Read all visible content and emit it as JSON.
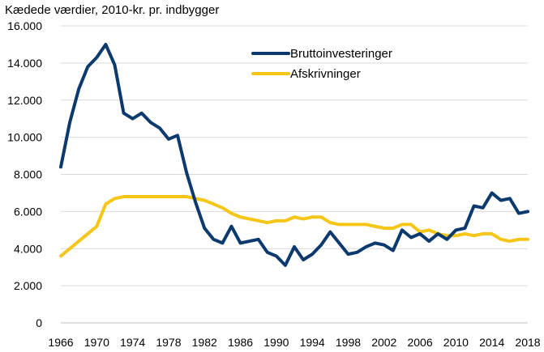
{
  "chart_data": {
    "type": "line",
    "title": "Kædede værdier, 2010-kr. pr. indbygger",
    "xlabel": "",
    "ylabel": "",
    "xlim": [
      1966,
      2018
    ],
    "ylim": [
      0,
      16000
    ],
    "x_ticks": [
      "1966",
      "1970",
      "1974",
      "1978",
      "1982",
      "1986",
      "1990",
      "1994",
      "1998",
      "2002",
      "2006",
      "2010",
      "2014",
      "2018"
    ],
    "y_ticks": [
      "0",
      "2.000",
      "4.000",
      "6.000",
      "8.000",
      "10.000",
      "12.000",
      "14.000",
      "16.000"
    ],
    "y_tick_values": [
      0,
      2000,
      4000,
      6000,
      8000,
      10000,
      12000,
      14000,
      16000
    ],
    "grid": "horizontal",
    "legend_position": "top-right",
    "x": [
      1966,
      1967,
      1968,
      1969,
      1970,
      1971,
      1972,
      1973,
      1974,
      1975,
      1976,
      1977,
      1978,
      1979,
      1980,
      1981,
      1982,
      1983,
      1984,
      1985,
      1986,
      1987,
      1988,
      1989,
      1990,
      1991,
      1992,
      1993,
      1994,
      1995,
      1996,
      1997,
      1998,
      1999,
      2000,
      2001,
      2002,
      2003,
      2004,
      2005,
      2006,
      2007,
      2008,
      2009,
      2010,
      2011,
      2012,
      2013,
      2014,
      2015,
      2016,
      2017,
      2018
    ],
    "series": [
      {
        "name": "Bruttoinvesteringer",
        "color": "#0d3a6e",
        "values": [
          8400,
          10800,
          12600,
          13800,
          14300,
          15000,
          13900,
          11300,
          11000,
          11300,
          10800,
          10500,
          9900,
          10100,
          8100,
          6500,
          5100,
          4500,
          4300,
          5200,
          4300,
          4400,
          4500,
          3800,
          3600,
          3100,
          4100,
          3400,
          3700,
          4200,
          4900,
          4300,
          3700,
          3800,
          4100,
          4300,
          4200,
          3900,
          5000,
          4600,
          4800,
          4400,
          4800,
          4500,
          5000,
          5100,
          6300,
          6200,
          7000,
          6600,
          6700,
          5900,
          6000
        ]
      },
      {
        "name": "Afskrivninger",
        "color": "#f5c518",
        "values": [
          3600,
          4000,
          4400,
          4800,
          5200,
          6400,
          6700,
          6800,
          6800,
          6800,
          6800,
          6800,
          6800,
          6800,
          6800,
          6700,
          6600,
          6400,
          6200,
          5900,
          5700,
          5600,
          5500,
          5400,
          5500,
          5500,
          5700,
          5600,
          5700,
          5700,
          5400,
          5300,
          5300,
          5300,
          5300,
          5200,
          5100,
          5100,
          5300,
          5300,
          4900,
          5000,
          4800,
          4700,
          4700,
          4800,
          4700,
          4800,
          4800,
          4500,
          4400,
          4500,
          4500
        ]
      }
    ]
  }
}
